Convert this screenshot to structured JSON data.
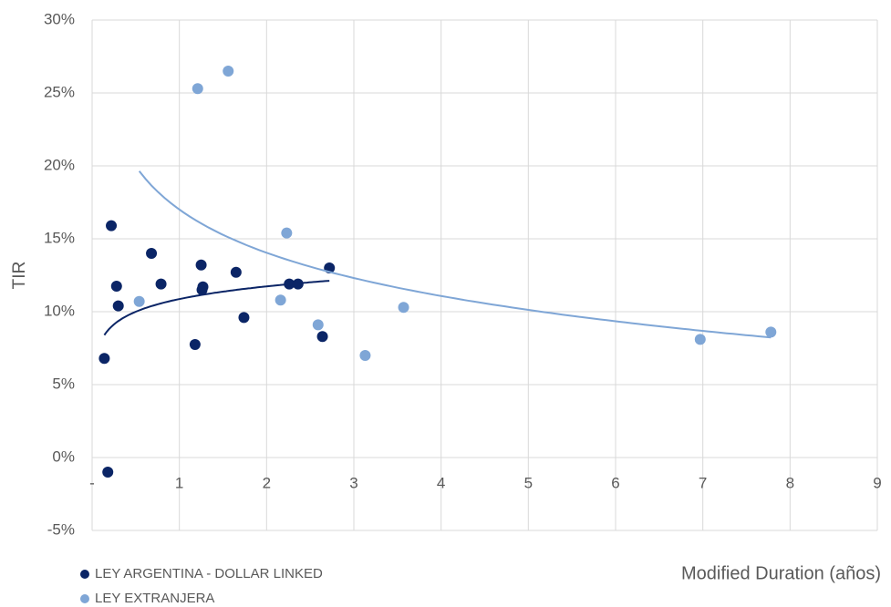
{
  "chart_data": {
    "type": "scatter",
    "x_label": "Modified Duration (años)",
    "y_label": "TIR",
    "trendline": "logarithmic",
    "grid": true,
    "legend": "bottom-left",
    "xlim": [
      0,
      9
    ],
    "xticks": [
      {
        "value": 0,
        "label": "-"
      },
      1,
      2,
      3,
      4,
      5,
      6,
      7,
      8,
      9
    ],
    "ylim": [
      -5,
      30
    ],
    "yticks": [
      {
        "value": -5,
        "label": "-5%"
      },
      {
        "value": 0,
        "label": "0%"
      },
      {
        "value": 5,
        "label": "5%"
      },
      {
        "value": 10,
        "label": "10%"
      },
      {
        "value": 15,
        "label": "15%"
      },
      {
        "value": 20,
        "label": "20%"
      },
      {
        "value": 25,
        "label": "25%"
      },
      {
        "value": 30,
        "label": "30%"
      }
    ],
    "series": [
      {
        "name": "LEY ARGENTINA - DOLLAR LINKED",
        "color": "#0b2566",
        "x": [
          0.14,
          0.18,
          0.22,
          0.28,
          0.3,
          0.68,
          0.79,
          1.18,
          1.25,
          1.26,
          1.27,
          1.65,
          1.74,
          2.26,
          2.36,
          2.64,
          2.72
        ],
        "values": [
          6.8,
          -1.0,
          15.9,
          11.75,
          10.4,
          14.0,
          11.9,
          7.75,
          13.2,
          11.5,
          11.7,
          12.7,
          9.6,
          11.9,
          11.9,
          8.3,
          13.0
        ]
      },
      {
        "name": "LEY EXTRANJERA",
        "color": "#7fa6d6",
        "x": [
          0.54,
          1.21,
          1.56,
          2.16,
          2.23,
          2.59,
          3.13,
          3.57,
          6.97,
          7.78
        ],
        "values": [
          10.7,
          25.3,
          26.5,
          10.8,
          15.4,
          9.1,
          7.0,
          10.3,
          8.1,
          8.6
        ]
      }
    ]
  }
}
